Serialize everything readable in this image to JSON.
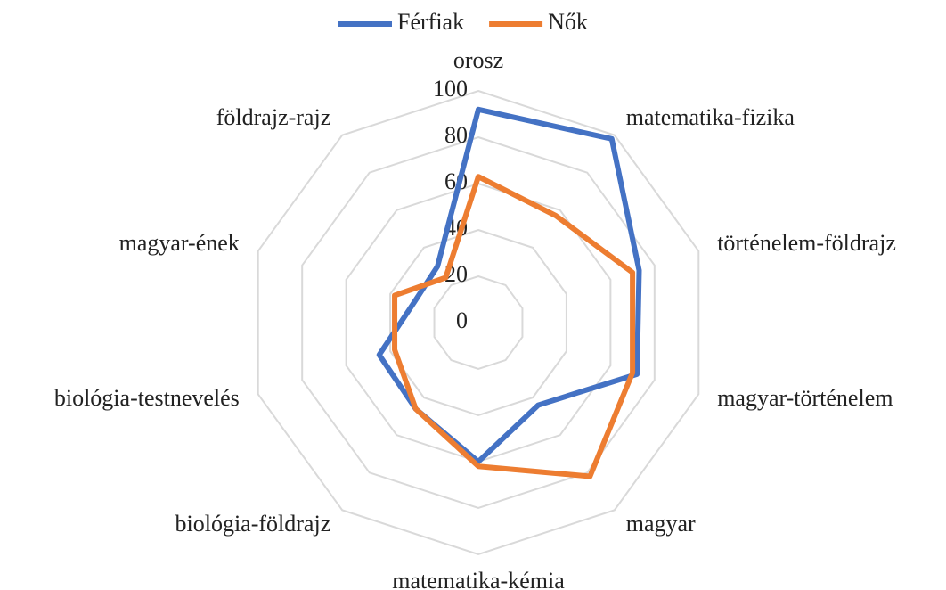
{
  "chart_data": {
    "type": "radar",
    "categories": [
      "orosz",
      "matematika-fizika",
      "történelem-földrajz",
      "magyar-történelem",
      "magyar",
      "matematika-kémia",
      "biológia-földrajz",
      "biológia-testnevelés",
      "magyar-ének",
      "földrajz-rajz"
    ],
    "series": [
      {
        "name": "Férfiak",
        "color": "#4472c4",
        "values": [
          92,
          98,
          73,
          72,
          44,
          60,
          46,
          45,
          29,
          30
        ]
      },
      {
        "name": "Nők",
        "color": "#ed7d31",
        "values": [
          63,
          57,
          70,
          70,
          82,
          62,
          46,
          38,
          38,
          24
        ]
      }
    ],
    "ylim": [
      0,
      100
    ],
    "yticks": [
      0,
      20,
      40,
      60,
      80,
      100
    ],
    "grid": true,
    "legend": "top"
  }
}
